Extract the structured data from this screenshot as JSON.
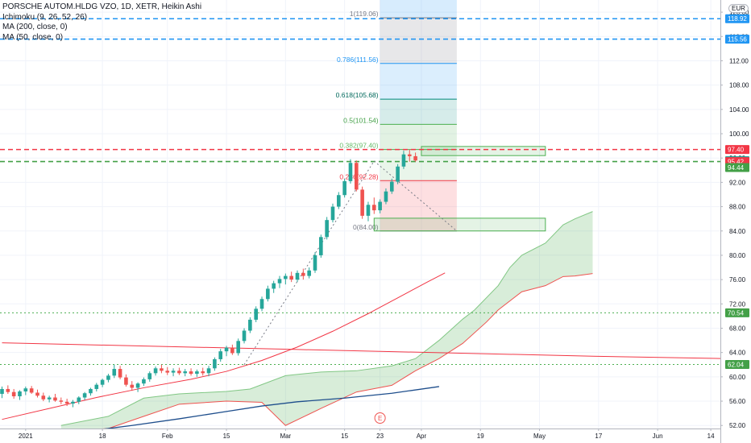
{
  "legend": {
    "title": "PORSCHE AUTOM.HLDG VZO, 1D, XETR, Heikin Ashi",
    "ichimoku": "Ichimoku (9, 26, 52, 26)",
    "ma200": "MA (200, close, 0)",
    "ma50": "MA (50, close, 0)"
  },
  "currency": "EUR",
  "colors": {
    "up": "#26a69a",
    "down": "#ef5350",
    "ma200": "#2962ff",
    "ma50": "#f23645",
    "cloud": "#a5d6a7",
    "level_blue": "#2196f3",
    "level_red": "#f23645",
    "level_green": "#4caf50",
    "axis_text": "#131722"
  },
  "chart_data": {
    "type": "candlestick",
    "ylim": [
      51.5,
      122
    ],
    "y_ticks": [
      "52.00",
      "56.00",
      "60.00",
      "64.00",
      "68.00",
      "72.00",
      "76.00",
      "80.00",
      "84.00",
      "88.00",
      "92.00",
      "96.00",
      "100.00",
      "104.00",
      "108.00",
      "112.00",
      "116.00",
      "120.00"
    ],
    "x_ticks": [
      {
        "label": "2021",
        "i": 4
      },
      {
        "label": "18",
        "i": 17
      },
      {
        "label": "Feb",
        "i": 28
      },
      {
        "label": "15",
        "i": 38
      },
      {
        "label": "Mar",
        "i": 48
      },
      {
        "label": "15",
        "i": 58
      },
      {
        "label": "23",
        "i": 64
      },
      {
        "label": "Apr",
        "i": 71
      },
      {
        "label": "19",
        "i": 81
      },
      {
        "label": "May",
        "i": 91
      },
      {
        "label": "17",
        "i": 101
      },
      {
        "label": "Jun",
        "i": 111
      },
      {
        "label": "14",
        "i": 120
      }
    ],
    "price_labels": [
      {
        "value": 118.92,
        "text": "118.92",
        "style": "blue"
      },
      {
        "value": 115.56,
        "text": "115.56",
        "style": "blue"
      },
      {
        "value": 97.4,
        "text": "97.40",
        "style": "red"
      },
      {
        "value": 95.56,
        "text": "95.56",
        "style": "up"
      },
      {
        "value": 95.42,
        "text": "95.42",
        "style": "red"
      },
      {
        "value": 94.44,
        "text": "94.44",
        "style": "green"
      },
      {
        "value": 70.54,
        "text": "70.54",
        "style": "green"
      },
      {
        "value": 62.04,
        "text": "62.04",
        "style": "green"
      }
    ],
    "horizontal_lines": [
      {
        "value": 118.92,
        "style": "blue"
      },
      {
        "value": 115.56,
        "style": "blue"
      },
      {
        "value": 97.4,
        "style": "red"
      },
      {
        "value": 95.42,
        "style": "green"
      },
      {
        "value": 70.54,
        "style": "green-dot"
      },
      {
        "value": 62.04,
        "style": "green-dot"
      }
    ],
    "fib_levels": [
      {
        "label": "1(119.06)",
        "value": 119.06
      },
      {
        "label": "0.786(111.56)",
        "value": 111.56
      },
      {
        "label": "0.618(105.68)",
        "value": 105.68
      },
      {
        "label": "0.5(101.54)",
        "value": 101.54
      },
      {
        "label": "0.382(97.40)",
        "value": 97.4
      },
      {
        "label": "0.236(92.28)",
        "value": 92.28
      },
      {
        "label": "0(84.00)",
        "value": 84.0
      }
    ],
    "fib_range": {
      "i0": 64,
      "i1": 77
    },
    "boxes": [
      {
        "i0": 71,
        "i1": 92,
        "y0": 97.9,
        "y1": 96.4
      },
      {
        "i0": 63,
        "i1": 92,
        "y0": 86.1,
        "y1": 84.0
      }
    ],
    "trend_lines": [
      {
        "i0": 41,
        "y0": 62.0,
        "i1": 63,
        "y1": 95.5
      },
      {
        "i0": 63,
        "y0": 95.5,
        "i1": 77,
        "y1": 84.0
      }
    ],
    "candles": [
      {
        "o": 57.2,
        "h": 58.4,
        "l": 56.5,
        "c": 58.0
      },
      {
        "o": 58.0,
        "h": 58.6,
        "l": 57.2,
        "c": 57.5
      },
      {
        "o": 57.5,
        "h": 58.0,
        "l": 56.4,
        "c": 56.8
      },
      {
        "o": 56.8,
        "h": 57.8,
        "l": 56.2,
        "c": 57.6
      },
      {
        "o": 57.6,
        "h": 58.4,
        "l": 57.0,
        "c": 58.1
      },
      {
        "o": 58.1,
        "h": 58.5,
        "l": 57.2,
        "c": 57.4
      },
      {
        "o": 57.4,
        "h": 57.9,
        "l": 56.6,
        "c": 56.9
      },
      {
        "o": 56.9,
        "h": 57.4,
        "l": 56.0,
        "c": 56.3
      },
      {
        "o": 56.3,
        "h": 56.9,
        "l": 55.8,
        "c": 56.6
      },
      {
        "o": 56.6,
        "h": 57.2,
        "l": 55.9,
        "c": 56.1
      },
      {
        "o": 56.1,
        "h": 56.6,
        "l": 55.5,
        "c": 55.9
      },
      {
        "o": 55.9,
        "h": 56.4,
        "l": 55.2,
        "c": 55.6
      },
      {
        "o": 55.6,
        "h": 56.2,
        "l": 55.0,
        "c": 55.9
      },
      {
        "o": 55.9,
        "h": 56.8,
        "l": 55.5,
        "c": 56.6
      },
      {
        "o": 56.6,
        "h": 57.5,
        "l": 56.2,
        "c": 57.3
      },
      {
        "o": 57.3,
        "h": 58.2,
        "l": 56.9,
        "c": 58.0
      },
      {
        "o": 58.0,
        "h": 59.0,
        "l": 57.6,
        "c": 58.7
      },
      {
        "o": 58.7,
        "h": 59.7,
        "l": 58.3,
        "c": 59.5
      },
      {
        "o": 59.5,
        "h": 60.5,
        "l": 59.1,
        "c": 60.2
      },
      {
        "o": 60.2,
        "h": 62.0,
        "l": 59.8,
        "c": 61.3
      },
      {
        "o": 61.3,
        "h": 61.8,
        "l": 59.6,
        "c": 59.9
      },
      {
        "o": 59.9,
        "h": 60.4,
        "l": 58.4,
        "c": 58.7
      },
      {
        "o": 58.7,
        "h": 59.3,
        "l": 57.7,
        "c": 58.2
      },
      {
        "o": 58.2,
        "h": 59.1,
        "l": 57.5,
        "c": 58.9
      },
      {
        "o": 58.9,
        "h": 59.9,
        "l": 58.5,
        "c": 59.6
      },
      {
        "o": 59.6,
        "h": 60.9,
        "l": 59.2,
        "c": 60.6
      },
      {
        "o": 60.6,
        "h": 61.7,
        "l": 60.2,
        "c": 61.4
      },
      {
        "o": 61.4,
        "h": 62.0,
        "l": 60.6,
        "c": 61.0
      },
      {
        "o": 61.0,
        "h": 61.6,
        "l": 60.3,
        "c": 60.7
      },
      {
        "o": 60.7,
        "h": 61.4,
        "l": 60.1,
        "c": 61.0
      },
      {
        "o": 61.0,
        "h": 61.5,
        "l": 60.3,
        "c": 60.6
      },
      {
        "o": 60.6,
        "h": 61.3,
        "l": 60.1,
        "c": 60.9
      },
      {
        "o": 60.9,
        "h": 61.4,
        "l": 60.2,
        "c": 60.5
      },
      {
        "o": 60.5,
        "h": 61.2,
        "l": 60.0,
        "c": 60.9
      },
      {
        "o": 60.9,
        "h": 61.5,
        "l": 60.2,
        "c": 60.6
      },
      {
        "o": 60.6,
        "h": 61.8,
        "l": 60.1,
        "c": 61.4
      },
      {
        "o": 61.4,
        "h": 63.2,
        "l": 61.0,
        "c": 62.9
      },
      {
        "o": 62.9,
        "h": 64.6,
        "l": 62.5,
        "c": 64.2
      },
      {
        "o": 64.2,
        "h": 65.1,
        "l": 63.4,
        "c": 64.8
      },
      {
        "o": 64.8,
        "h": 65.3,
        "l": 63.6,
        "c": 63.9
      },
      {
        "o": 63.9,
        "h": 66.3,
        "l": 63.5,
        "c": 65.9
      },
      {
        "o": 65.9,
        "h": 68.0,
        "l": 65.5,
        "c": 67.6
      },
      {
        "o": 67.6,
        "h": 69.8,
        "l": 67.2,
        "c": 69.4
      },
      {
        "o": 69.4,
        "h": 71.6,
        "l": 69.0,
        "c": 71.2
      },
      {
        "o": 71.2,
        "h": 73.2,
        "l": 70.8,
        "c": 72.8
      },
      {
        "o": 72.8,
        "h": 75.0,
        "l": 72.4,
        "c": 74.5
      },
      {
        "o": 74.5,
        "h": 75.8,
        "l": 73.8,
        "c": 75.4
      },
      {
        "o": 75.4,
        "h": 76.6,
        "l": 74.6,
        "c": 76.1
      },
      {
        "o": 76.1,
        "h": 77.0,
        "l": 75.2,
        "c": 76.6
      },
      {
        "o": 76.6,
        "h": 77.3,
        "l": 75.6,
        "c": 76.0
      },
      {
        "o": 76.0,
        "h": 77.5,
        "l": 75.6,
        "c": 77.1
      },
      {
        "o": 77.1,
        "h": 77.8,
        "l": 76.0,
        "c": 76.6
      },
      {
        "o": 76.6,
        "h": 78.0,
        "l": 76.2,
        "c": 77.5
      },
      {
        "o": 77.5,
        "h": 80.5,
        "l": 77.1,
        "c": 80.0
      },
      {
        "o": 80.0,
        "h": 83.4,
        "l": 79.6,
        "c": 83.0
      },
      {
        "o": 83.0,
        "h": 86.3,
        "l": 82.6,
        "c": 85.8
      },
      {
        "o": 85.8,
        "h": 88.5,
        "l": 85.4,
        "c": 88.0
      },
      {
        "o": 88.0,
        "h": 90.4,
        "l": 87.6,
        "c": 89.9
      },
      {
        "o": 89.9,
        "h": 92.6,
        "l": 89.5,
        "c": 92.2
      },
      {
        "o": 92.2,
        "h": 95.8,
        "l": 91.8,
        "c": 95.2
      },
      {
        "o": 95.2,
        "h": 95.6,
        "l": 90.5,
        "c": 90.8
      },
      {
        "o": 90.8,
        "h": 91.3,
        "l": 86.0,
        "c": 86.5
      },
      {
        "o": 86.5,
        "h": 88.8,
        "l": 85.6,
        "c": 88.3
      },
      {
        "o": 88.3,
        "h": 89.5,
        "l": 86.8,
        "c": 87.4
      },
      {
        "o": 87.4,
        "h": 89.2,
        "l": 86.9,
        "c": 88.8
      },
      {
        "o": 88.8,
        "h": 91.0,
        "l": 88.4,
        "c": 90.5
      },
      {
        "o": 90.5,
        "h": 92.6,
        "l": 90.1,
        "c": 92.1
      },
      {
        "o": 92.1,
        "h": 95.0,
        "l": 91.7,
        "c": 94.6
      },
      {
        "o": 94.6,
        "h": 97.2,
        "l": 94.2,
        "c": 96.6
      },
      {
        "o": 96.6,
        "h": 97.4,
        "l": 95.4,
        "c": 96.3
      },
      {
        "o": 96.3,
        "h": 96.9,
        "l": 95.4,
        "c": 95.6
      }
    ],
    "ma200": [
      [
        14,
        51.0
      ],
      [
        22,
        52.0
      ],
      [
        30,
        53.1
      ],
      [
        38,
        54.3
      ],
      [
        44,
        55.2
      ],
      [
        50,
        55.9
      ],
      [
        58,
        56.5
      ],
      [
        66,
        57.3
      ],
      [
        74,
        58.4
      ]
    ],
    "ma50": [
      [
        0,
        53.0
      ],
      [
        8,
        54.8
      ],
      [
        16,
        56.6
      ],
      [
        24,
        58.2
      ],
      [
        32,
        59.6
      ],
      [
        38,
        60.9
      ],
      [
        44,
        62.7
      ],
      [
        50,
        64.9
      ],
      [
        56,
        67.5
      ],
      [
        62,
        70.4
      ],
      [
        67,
        73.0
      ],
      [
        72,
        75.6
      ],
      [
        75,
        77.1
      ]
    ],
    "lt_line": [
      [
        0,
        65.6
      ],
      [
        50,
        64.5
      ],
      [
        100,
        63.4
      ],
      [
        128,
        62.9
      ]
    ],
    "cloud_upper": [
      [
        10,
        52.0
      ],
      [
        18,
        53.5
      ],
      [
        24,
        56.5
      ],
      [
        30,
        57.2
      ],
      [
        38,
        57.6
      ],
      [
        42,
        58.0
      ],
      [
        48,
        60.2
      ],
      [
        54,
        60.8
      ],
      [
        60,
        61.0
      ],
      [
        66,
        61.8
      ],
      [
        70,
        63.0
      ],
      [
        74,
        66.0
      ],
      [
        78,
        69.5
      ],
      [
        80,
        71.0
      ],
      [
        84,
        75.0
      ],
      [
        86,
        78.0
      ],
      [
        88,
        80.0
      ],
      [
        92,
        82.0
      ],
      [
        95,
        85.0
      ],
      [
        97,
        86.0
      ],
      [
        100,
        87.2
      ]
    ],
    "cloud_lower": [
      [
        10,
        51.0
      ],
      [
        18,
        51.5
      ],
      [
        24,
        53.5
      ],
      [
        30,
        55.5
      ],
      [
        38,
        56.0
      ],
      [
        44,
        55.8
      ],
      [
        48,
        52.0
      ],
      [
        54,
        54.8
      ],
      [
        60,
        57.5
      ],
      [
        66,
        58.6
      ],
      [
        70,
        61.0
      ],
      [
        74,
        63.0
      ],
      [
        78,
        65.5
      ],
      [
        82,
        69.0
      ],
      [
        84,
        71.0
      ],
      [
        88,
        74.0
      ],
      [
        92,
        75.0
      ],
      [
        95,
        76.5
      ],
      [
        97,
        76.6
      ],
      [
        100,
        77.0
      ]
    ],
    "earnings_marker": {
      "text": "E",
      "i": 64
    }
  }
}
